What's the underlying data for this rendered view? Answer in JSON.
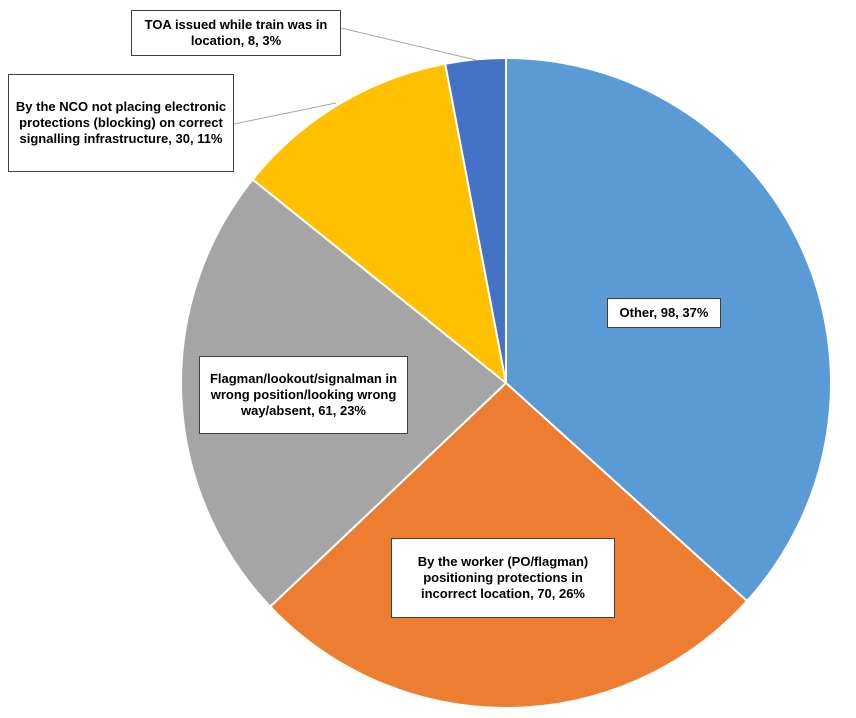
{
  "chart_data": {
    "type": "pie",
    "title": "",
    "slices": [
      {
        "label": "Other, 98, 37%",
        "category": "Other",
        "value": 98,
        "percent": 37,
        "color": "#5B9BD5"
      },
      {
        "label": "By the worker (PO/flagman) positioning protections in incorrect location, 70, 26%",
        "category": "By the worker (PO/flagman) positioning protections in incorrect location",
        "value": 70,
        "percent": 26,
        "color": "#ED7D31"
      },
      {
        "label": "Flagman/lookout/signalman in wrong position/looking wrong way/absent, 61, 23%",
        "category": "Flagman/lookout/signalman in wrong position/looking wrong way/absent",
        "value": 61,
        "percent": 23,
        "color": "#A5A5A5"
      },
      {
        "label": "By the NCO not placing electronic protections (blocking) on correct signalling infrastructure, 30, 11%",
        "category": "By the NCO not placing electronic protections (blocking) on correct signalling infrastructure",
        "value": 30,
        "percent": 11,
        "color": "#FFC000"
      },
      {
        "label": "TOA issued while train was in location, 8, 3%",
        "category": "TOA issued while train was in location",
        "value": 8,
        "percent": 3,
        "color": "#4472C4"
      }
    ],
    "start_angle": "12 o'clock",
    "direction": "clockwise",
    "legend": "none",
    "data_labels": "callout boxes"
  }
}
